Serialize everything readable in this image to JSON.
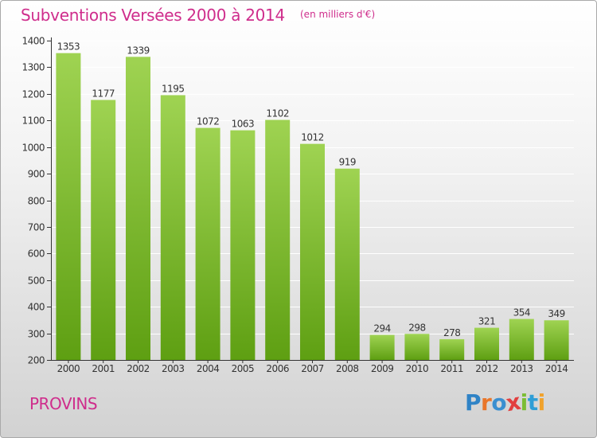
{
  "header": {
    "title": "Subventions Versées 2000 à 2014",
    "unit_note": "(en milliers d'€)"
  },
  "footer": {
    "town": "PROVINS",
    "logo_text": "Proxiti"
  },
  "colors": {
    "accent": "#cf2d8c",
    "bar_top": "#9fd352",
    "bar_bottom": "#5e9f12"
  },
  "chart_data": {
    "type": "bar",
    "categories": [
      "2000",
      "2001",
      "2002",
      "2003",
      "2004",
      "2005",
      "2006",
      "2007",
      "2008",
      "2009",
      "2010",
      "2011",
      "2012",
      "2013",
      "2014"
    ],
    "values": [
      1353,
      1177,
      1339,
      1195,
      1072,
      1063,
      1102,
      1012,
      919,
      294,
      298,
      278,
      321,
      354,
      349
    ],
    "title": "Subventions Versées 2000 à 2014",
    "ylabel": "",
    "xlabel": "",
    "ylim": [
      200,
      1400
    ],
    "yticks": [
      200,
      300,
      400,
      500,
      600,
      700,
      800,
      900,
      1000,
      1100,
      1200,
      1300,
      1400
    ],
    "grid": true
  }
}
